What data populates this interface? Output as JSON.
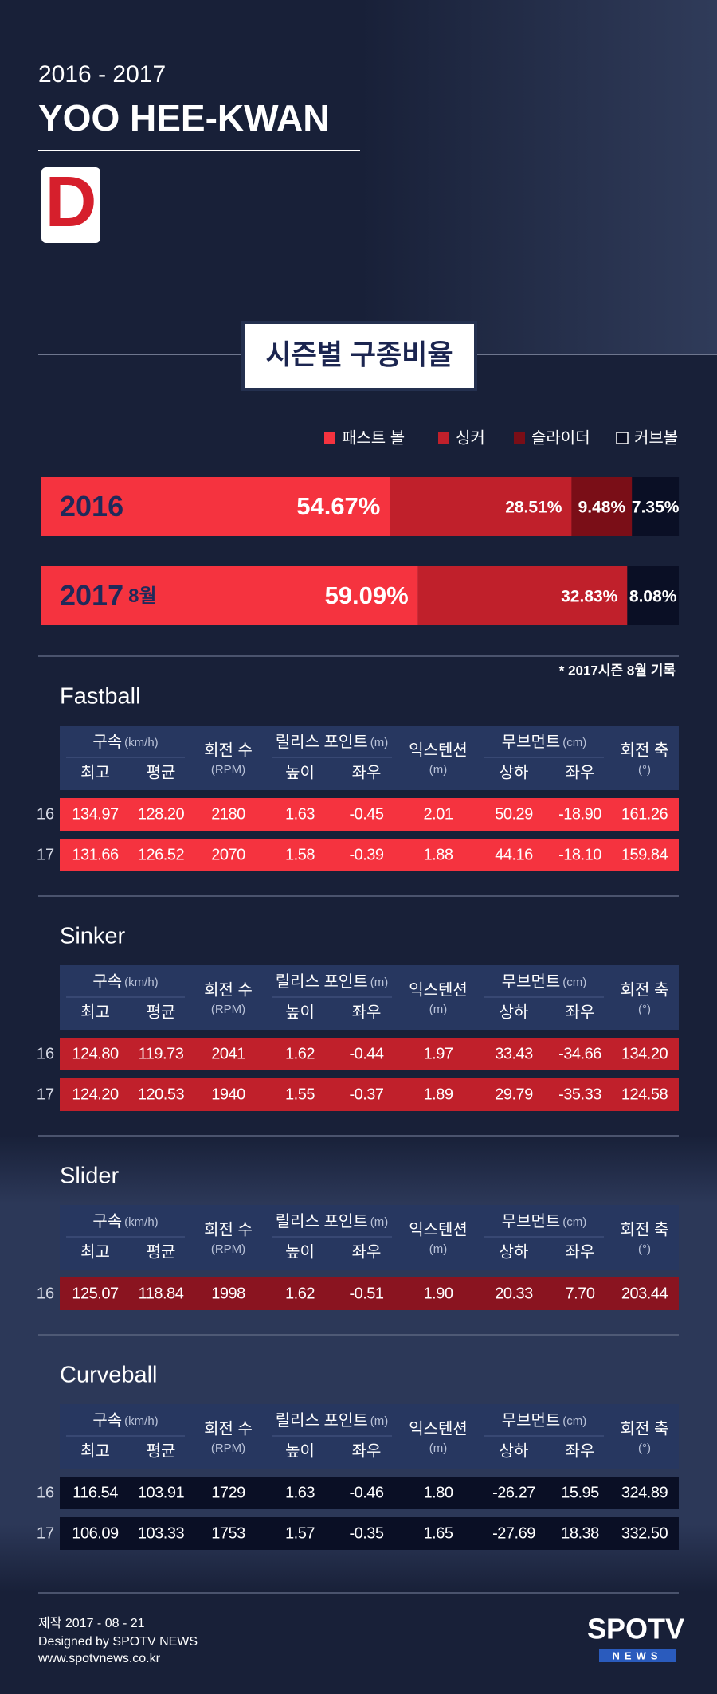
{
  "header": {
    "years": "2016 - 2017",
    "name": "YOO HEE-KWAN",
    "logo": "D"
  },
  "section_title": "시즌별 구종비율",
  "chart_data": {
    "type": "stacked_bar",
    "categories": [
      "2016",
      "2017"
    ],
    "category_suffixes": [
      null,
      "8월"
    ],
    "xlim": [
      0,
      100
    ],
    "series": [
      {
        "name": "패스트 볼",
        "color": "#f5333f",
        "values": [
          54.67,
          59.09
        ],
        "value_labels": [
          "54.67%",
          "59.09%"
        ]
      },
      {
        "name": "싱커",
        "color": "#c0202b",
        "values": [
          28.51,
          32.83
        ],
        "value_labels": [
          "28.51%",
          "32.83%"
        ]
      },
      {
        "name": "슬라이더",
        "color": "#7a0e17",
        "values": [
          9.48,
          null
        ],
        "value_labels": [
          "9.48%",
          null
        ]
      },
      {
        "name": "커브볼",
        "color": "#0a0f25",
        "values": [
          7.35,
          8.08
        ],
        "value_labels": [
          "7.35%",
          "8.08%"
        ]
      }
    ],
    "note": "* 2017시즌 8월 기록"
  },
  "table_header": {
    "speed": "구속",
    "speed_unit": "(km/h)",
    "max": "최고",
    "avg": "평균",
    "spin": "회전 수",
    "spin_unit": "(RPM)",
    "release": "릴리스 포인트",
    "release_unit": "(m)",
    "height": "높이",
    "side": "좌우",
    "extension": "익스텐션",
    "extension_unit": "(m)",
    "movement": "무브먼트",
    "movement_unit": "(cm)",
    "vertical": "상하",
    "horizontal": "좌우",
    "axis": "회전 축",
    "axis_unit": "(°)"
  },
  "pitches": [
    {
      "name": "Fastball",
      "color": "#f5333f",
      "rows": [
        {
          "season": "16",
          "cells": [
            "134.97",
            "128.20",
            "2180",
            "1.63",
            "-0.45",
            "2.01",
            "50.29",
            "-18.90",
            "161.26"
          ]
        },
        {
          "season": "17",
          "cells": [
            "131.66",
            "126.52",
            "2070",
            "1.58",
            "-0.39",
            "1.88",
            "44.16",
            "-18.10",
            "159.84"
          ]
        }
      ]
    },
    {
      "name": "Sinker",
      "color": "#c0202b",
      "rows": [
        {
          "season": "16",
          "cells": [
            "124.80",
            "119.73",
            "2041",
            "1.62",
            "-0.44",
            "1.97",
            "33.43",
            "-34.66",
            "134.20"
          ]
        },
        {
          "season": "17",
          "cells": [
            "124.20",
            "120.53",
            "1940",
            "1.55",
            "-0.37",
            "1.89",
            "29.79",
            "-35.33",
            "124.58"
          ]
        }
      ]
    },
    {
      "name": "Slider",
      "color": "#8a1420",
      "rows": [
        {
          "season": "16",
          "cells": [
            "125.07",
            "118.84",
            "1998",
            "1.62",
            "-0.51",
            "1.90",
            "20.33",
            "7.70",
            "203.44"
          ]
        }
      ]
    },
    {
      "name": "Curveball",
      "color": "#0a0f25",
      "rows": [
        {
          "season": "16",
          "cells": [
            "116.54",
            "103.91",
            "1729",
            "1.63",
            "-0.46",
            "1.80",
            "-26.27",
            "15.95",
            "324.89"
          ]
        },
        {
          "season": "17",
          "cells": [
            "106.09",
            "103.33",
            "1753",
            "1.57",
            "-0.35",
            "1.65",
            "-27.69",
            "18.38",
            "332.50"
          ]
        }
      ]
    }
  ],
  "footer": {
    "date": "제작 2017 - 08 - 21",
    "designer": "Designed by SPOTV NEWS",
    "url": "www.spotvnews.co.kr",
    "logo": "SPOTV",
    "logo_sub": "NEWS"
  }
}
